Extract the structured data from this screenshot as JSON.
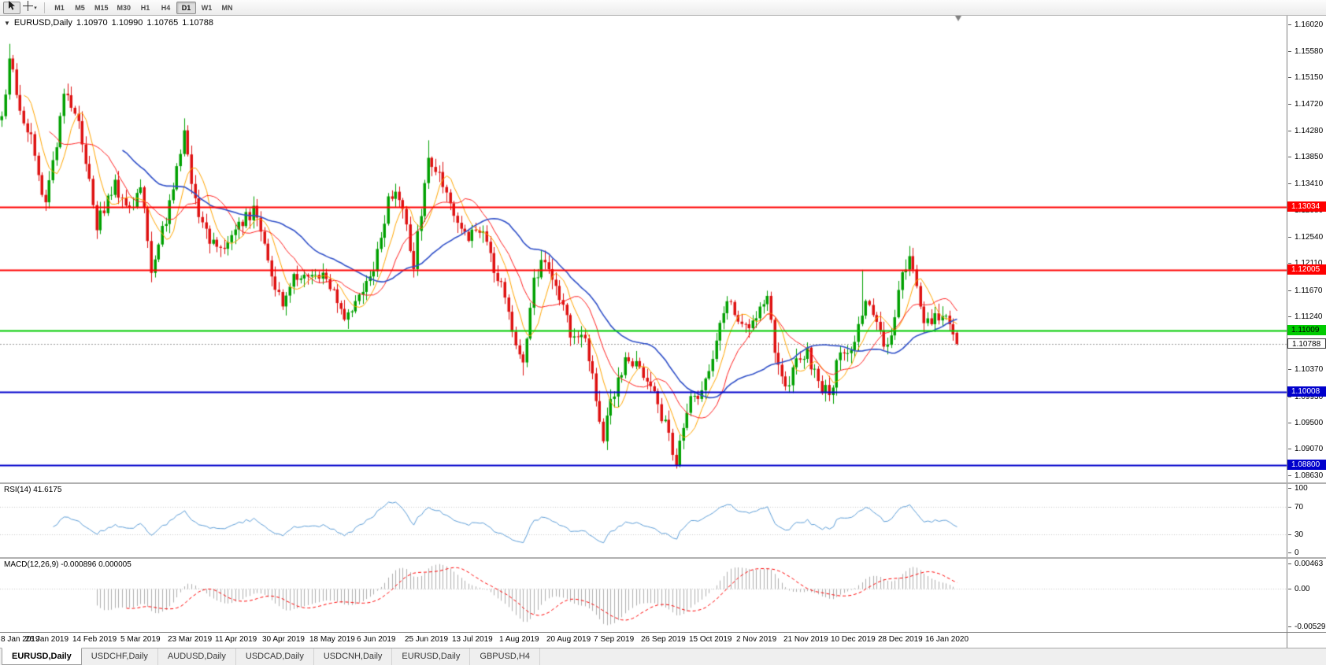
{
  "toolbar": {
    "timeframes": [
      "M1",
      "M5",
      "M15",
      "M30",
      "H1",
      "H4",
      "D1",
      "W1",
      "MN"
    ],
    "active_timeframe": "D1"
  },
  "chart_header": {
    "symbol": "EURUSD,Daily",
    "open": "1.10970",
    "high": "1.10990",
    "low": "1.10765",
    "close": "1.10788"
  },
  "indicators": {
    "rsi_label": "RSI(14) 41.6175",
    "macd_label": "MACD(12,26,9) -0.000896 0.000005"
  },
  "tabs": {
    "items": [
      "EURUSD,Daily",
      "USDCHF,Daily",
      "AUDUSD,Daily",
      "USDCAD,Daily",
      "USDCNH,Daily",
      "EURUSD,Daily",
      "GBPUSD,H4"
    ],
    "active_index": 0
  },
  "chart_data": [
    {
      "type": "candlestick",
      "title": "EURUSD Daily",
      "ylim": [
        1.0852,
        1.1616
      ],
      "y_tick_labels": [
        "1.16020",
        "1.15580",
        "1.15150",
        "1.14720",
        "1.14280",
        "1.13850",
        "1.13410",
        "1.12980",
        "1.12540",
        "1.12110",
        "1.11670",
        "1.11240",
        "1.10810",
        "1.10370",
        "1.09930",
        "1.09500",
        "1.09070",
        "1.08630"
      ],
      "x_tick_labels": [
        "8 Jan 2019",
        "26 Jan 2019",
        "14 Feb 2019",
        "5 Mar 2019",
        "23 Mar 2019",
        "11 Apr 2019",
        "30 Apr 2019",
        "18 May 2019",
        "6 Jun 2019",
        "25 Jun 2019",
        "13 Jul 2019",
        "1 Aug 2019",
        "20 Aug 2019",
        "7 Sep 2019",
        "26 Sep 2019",
        "15 Oct 2019",
        "2 Nov 2019",
        "21 Nov 2019",
        "10 Dec 2019",
        "28 Dec 2019",
        "16 Jan 2020"
      ],
      "x_tick_step": 13,
      "bar_count": 263,
      "data_end_fraction": 0.745,
      "seed": 20,
      "close_anchors": [
        [
          0,
          1.1445
        ],
        [
          2,
          1.154
        ],
        [
          5,
          1.1468
        ],
        [
          9,
          1.1392
        ],
        [
          12,
          1.1302
        ],
        [
          17,
          1.1488
        ],
        [
          21,
          1.1438
        ],
        [
          26,
          1.1272
        ],
        [
          31,
          1.1335
        ],
        [
          35,
          1.1302
        ],
        [
          38,
          1.134
        ],
        [
          41,
          1.1202
        ],
        [
          46,
          1.1302
        ],
        [
          50,
          1.1418
        ],
        [
          53,
          1.1312
        ],
        [
          57,
          1.1242
        ],
        [
          61,
          1.1228
        ],
        [
          65,
          1.1268
        ],
        [
          69,
          1.1296
        ],
        [
          73,
          1.1222
        ],
        [
          77,
          1.1132
        ],
        [
          80,
          1.1198
        ],
        [
          84,
          1.1178
        ],
        [
          88,
          1.1186
        ],
        [
          91,
          1.116
        ],
        [
          94,
          1.112
        ],
        [
          97,
          1.1156
        ],
        [
          100,
          1.117
        ],
        [
          104,
          1.1246
        ],
        [
          106,
          1.1324
        ],
        [
          110,
          1.1306
        ],
        [
          113,
          1.1212
        ],
        [
          117,
          1.1386
        ],
        [
          120,
          1.1366
        ],
        [
          124,
          1.1288
        ],
        [
          128,
          1.1252
        ],
        [
          131,
          1.1266
        ],
        [
          134,
          1.1222
        ],
        [
          138,
          1.1152
        ],
        [
          141,
          1.1082
        ],
        [
          143,
          1.1042
        ],
        [
          146,
          1.1196
        ],
        [
          149,
          1.121
        ],
        [
          152,
          1.117
        ],
        [
          156,
          1.1102
        ],
        [
          160,
          1.1078
        ],
        [
          163,
          1.0992
        ],
        [
          165,
          1.0932
        ],
        [
          169,
          1.1026
        ],
        [
          172,
          1.106
        ],
        [
          175,
          1.104
        ],
        [
          178,
          1.1012
        ],
        [
          182,
          1.0942
        ],
        [
          185,
          1.0892
        ],
        [
          188,
          1.0976
        ],
        [
          192,
          1.1002
        ],
        [
          196,
          1.1076
        ],
        [
          199,
          1.115
        ],
        [
          202,
          1.1128
        ],
        [
          205,
          1.1092
        ],
        [
          208,
          1.115
        ],
        [
          210,
          1.1146
        ],
        [
          213,
          1.1032
        ],
        [
          216,
          1.1012
        ],
        [
          218,
          1.1058
        ],
        [
          221,
          1.106
        ],
        [
          224,
          1.1012
        ],
        [
          227,
          1.0992
        ],
        [
          230,
          1.1076
        ],
        [
          233,
          1.106
        ],
        [
          236,
          1.1136
        ],
        [
          238,
          1.114
        ],
        [
          242,
          1.1082
        ],
        [
          244,
          1.1092
        ],
        [
          247,
          1.1196
        ],
        [
          249,
          1.1226
        ],
        [
          251,
          1.117
        ],
        [
          253,
          1.1112
        ],
        [
          256,
          1.1128
        ],
        [
          259,
          1.1132
        ],
        [
          262,
          1.1079
        ]
      ],
      "extremes": [
        {
          "bar": 2,
          "high": 1.157
        },
        {
          "bar": 50,
          "high": 1.1448
        },
        {
          "bar": 117,
          "high": 1.1412
        },
        {
          "bar": 143,
          "low": 1.1027
        },
        {
          "bar": 165,
          "low": 1.0926
        },
        {
          "bar": 185,
          "low": 1.0879
        },
        {
          "bar": 236,
          "high": 1.12
        },
        {
          "bar": 249,
          "high": 1.1239
        }
      ],
      "last_bar_ohlc": [
        1.1097,
        1.1099,
        1.10765,
        1.10788
      ],
      "bid_price": 1.10788,
      "bid_label": "1.10788",
      "bull_color": "#00A000",
      "bear_color": "#DE1010",
      "moving_averages": [
        {
          "period": 7,
          "color": "#FFA500",
          "width": 1
        },
        {
          "period": 14,
          "color": "#FF2020",
          "width": 1
        },
        {
          "period": 34,
          "color": "#3050C8",
          "width": 1.6
        }
      ],
      "horizontal_lines": [
        {
          "price": 1.13034,
          "label": "1.13034",
          "color": "#FF0000",
          "text_color": "#FFFFFF",
          "width": 2
        },
        {
          "price": 1.12005,
          "label": "1.12005",
          "color": "#FF0000",
          "text_color": "#FFFFFF",
          "width": 2
        },
        {
          "price": 1.11009,
          "label": "1.11009",
          "color": "#00CC00",
          "text_color": "#000000",
          "width": 2
        },
        {
          "price": 1.10008,
          "label": "1.10008",
          "color": "#0000CC",
          "text_color": "#FFFFFF",
          "width": 2
        },
        {
          "price": 1.088,
          "label": "1.08800",
          "color": "#0000CC",
          "text_color": "#FFFFFF",
          "width": 2
        }
      ]
    },
    {
      "type": "line",
      "name": "RSI",
      "period": 14,
      "current_value": 41.6175,
      "levels": [
        70,
        30
      ],
      "ylim": [
        0,
        100
      ],
      "y_tick_labels": [
        "100",
        "70",
        "30",
        "0"
      ],
      "line_color": "#5B9CD6"
    },
    {
      "type": "macd",
      "fast": 12,
      "slow": 26,
      "signal": 9,
      "current_values": [
        -0.000896,
        5e-06
      ],
      "y_tick_labels": [
        "0.00463",
        "0.00",
        "-0.005295"
      ],
      "histogram_color": "#AEAEAE",
      "signal_color": "#FF0000"
    }
  ]
}
